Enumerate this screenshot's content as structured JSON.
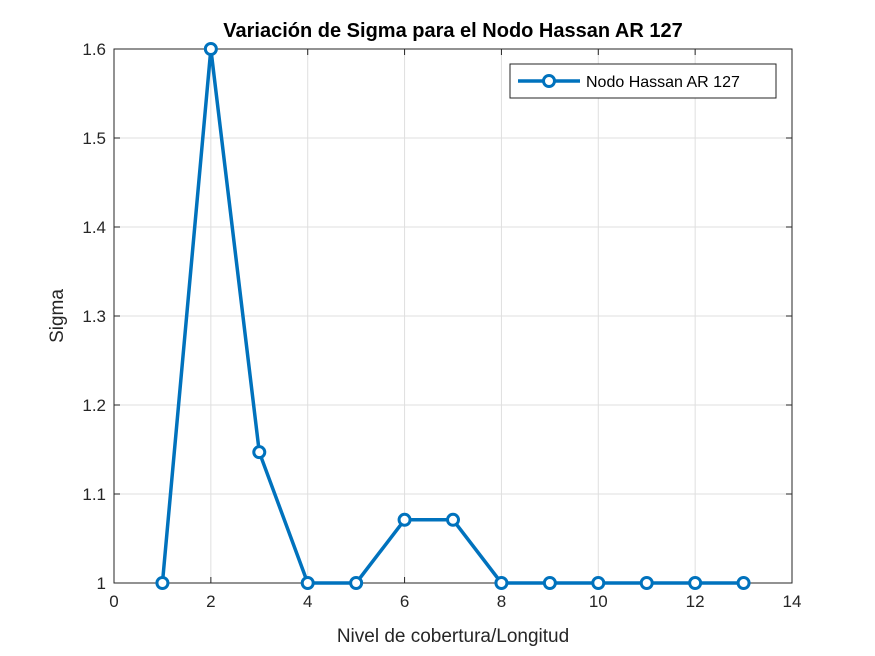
{
  "chart_data": {
    "type": "line",
    "title": "Variación de Sigma para el Nodo Hassan AR 127",
    "xlabel": "Nivel de cobertura/Longitud",
    "ylabel": "Sigma",
    "xlim": [
      0,
      14
    ],
    "ylim": [
      1,
      1.6
    ],
    "xticks": [
      0,
      2,
      4,
      6,
      8,
      10,
      12,
      14
    ],
    "xtick_labels": [
      "0",
      "2",
      "4",
      "6",
      "8",
      "10",
      "12",
      "14"
    ],
    "yticks": [
      1,
      1.1,
      1.2,
      1.3,
      1.4,
      1.5,
      1.6
    ],
    "ytick_labels": [
      "1",
      "1.1",
      "1.2",
      "1.3",
      "1.4",
      "1.5",
      "1.6"
    ],
    "grid": true,
    "legend_position": "top-right",
    "series": [
      {
        "name": "Nodo Hassan AR 127",
        "color": "#0072BD",
        "marker": "circle",
        "x": [
          1,
          2,
          3,
          4,
          5,
          6,
          7,
          8,
          9,
          10,
          11,
          12,
          13
        ],
        "y": [
          1,
          1.6,
          1.147,
          1,
          1,
          1.071,
          1.071,
          1,
          1,
          1,
          1,
          1,
          1
        ]
      }
    ]
  }
}
